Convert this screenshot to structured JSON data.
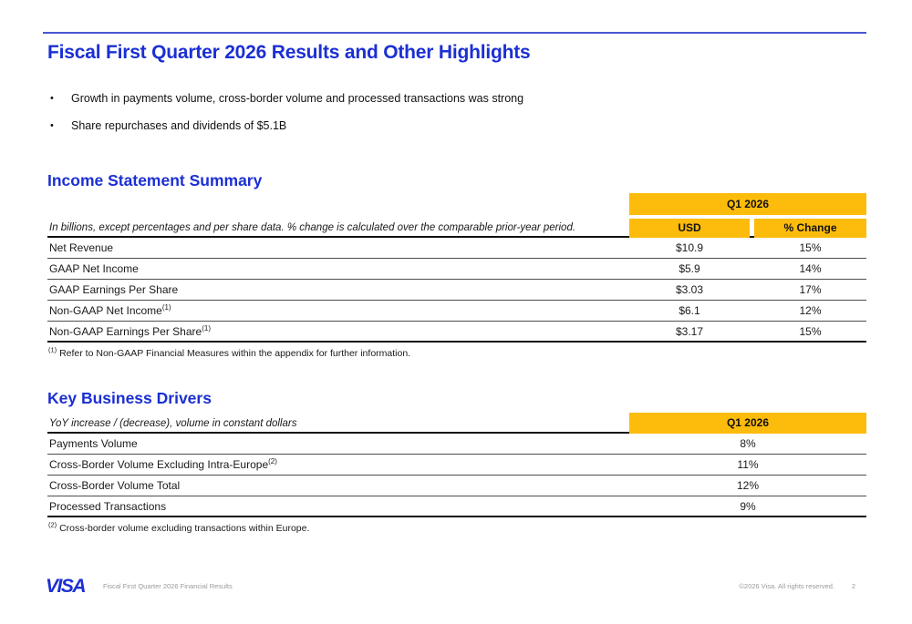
{
  "slide": {
    "title": "Fiscal First Quarter 2026 Results and Other Highlights",
    "bullets": [
      "Growth in payments volume, cross-border volume and processed transactions was strong",
      "Share repurchases and dividends of $5.1B"
    ]
  },
  "income_statement": {
    "heading": "Income Statement Summary",
    "note": "In billions, except percentages and per share data. % change is calculated over the comparable prior-year period.",
    "header_group": "Q1 2026",
    "col_usd": "USD",
    "col_change": "% Change",
    "rows": [
      {
        "label": "Net Revenue",
        "sup": "",
        "usd": "$10.9",
        "change": "15%"
      },
      {
        "label": "GAAP Net Income",
        "sup": "",
        "usd": "$5.9",
        "change": "14%"
      },
      {
        "label": "GAAP Earnings Per Share",
        "sup": "",
        "usd": "$3.03",
        "change": "17%"
      },
      {
        "label": "Non-GAAP Net Income",
        "sup": "(1)",
        "usd": "$6.1",
        "change": "12%"
      },
      {
        "label": "Non-GAAP Earnings Per Share",
        "sup": "(1)",
        "usd": "$3.17",
        "change": "15%"
      }
    ],
    "footnote_marker": "(1)",
    "footnote": " Refer to Non-GAAP Financial Measures within the appendix for further information."
  },
  "key_business_drivers": {
    "heading": "Key Business Drivers",
    "note": "YoY increase / (decrease), volume in constant dollars",
    "header_group": "Q1 2026",
    "rows": [
      {
        "label": "Payments Volume",
        "sup": "",
        "value": "8%"
      },
      {
        "label": "Cross-Border Volume Excluding Intra-Europe",
        "sup": "(2)",
        "value": "11%"
      },
      {
        "label": "Cross-Border Volume Total",
        "sup": "",
        "value": "12%"
      },
      {
        "label": "Processed Transactions",
        "sup": "",
        "value": "9%"
      }
    ],
    "footnote_marker": "(2)",
    "footnote": " Cross-border volume excluding transactions within Europe."
  },
  "footer": {
    "logo_text": "VISA",
    "left_text": "Fiscal First Quarter 2026 Financial Results",
    "copyright": "©2026 Visa. All rights reserved.",
    "page_number": "2"
  },
  "colors": {
    "visa_blue": "#1b2fd3",
    "visa_gold": "#fdbb0b"
  }
}
